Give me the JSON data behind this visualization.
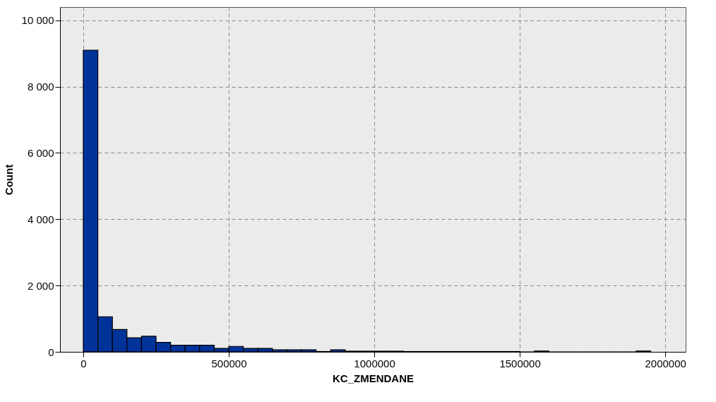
{
  "chart_data": {
    "type": "histogram",
    "xlabel": "KC_ZMENDANE",
    "ylabel": "Count",
    "color": "#003399",
    "bins": [
      0,
      50000,
      100000,
      150000,
      200000,
      250000,
      300000,
      350000,
      400000,
      450000,
      500000,
      550000,
      600000,
      650000,
      700000,
      750000,
      800000,
      850000,
      900000,
      950000,
      1000000,
      1050000,
      1100000,
      1150000,
      1200000,
      1250000,
      1300000,
      1350000,
      1400000,
      1450000,
      1500000,
      1550000,
      1600000,
      1650000,
      1700000,
      1750000,
      1800000,
      1850000,
      1900000,
      1950000
    ],
    "values": [
      9100,
      1060,
      675,
      425,
      470,
      285,
      200,
      200,
      200,
      105,
      165,
      105,
      105,
      60,
      60,
      60,
      10,
      60,
      20,
      20,
      20,
      20,
      10,
      10,
      10,
      10,
      10,
      10,
      10,
      10,
      0,
      25,
      0,
      0,
      0,
      0,
      0,
      0,
      25
    ],
    "xlim": [
      -80000,
      2070000
    ],
    "xticks": [
      0,
      500000,
      1000000,
      1500000,
      2000000
    ],
    "ylim": [
      0,
      10400
    ],
    "yticks": [
      {
        "value": 0,
        "label": "0"
      },
      {
        "value": 2000,
        "label": "2 000"
      },
      {
        "value": 4000,
        "label": "4 000"
      },
      {
        "value": 6000,
        "label": "6 000"
      },
      {
        "value": 8000,
        "label": "8 000"
      },
      {
        "value": 10000,
        "label": "10 000"
      }
    ],
    "grid": true
  }
}
